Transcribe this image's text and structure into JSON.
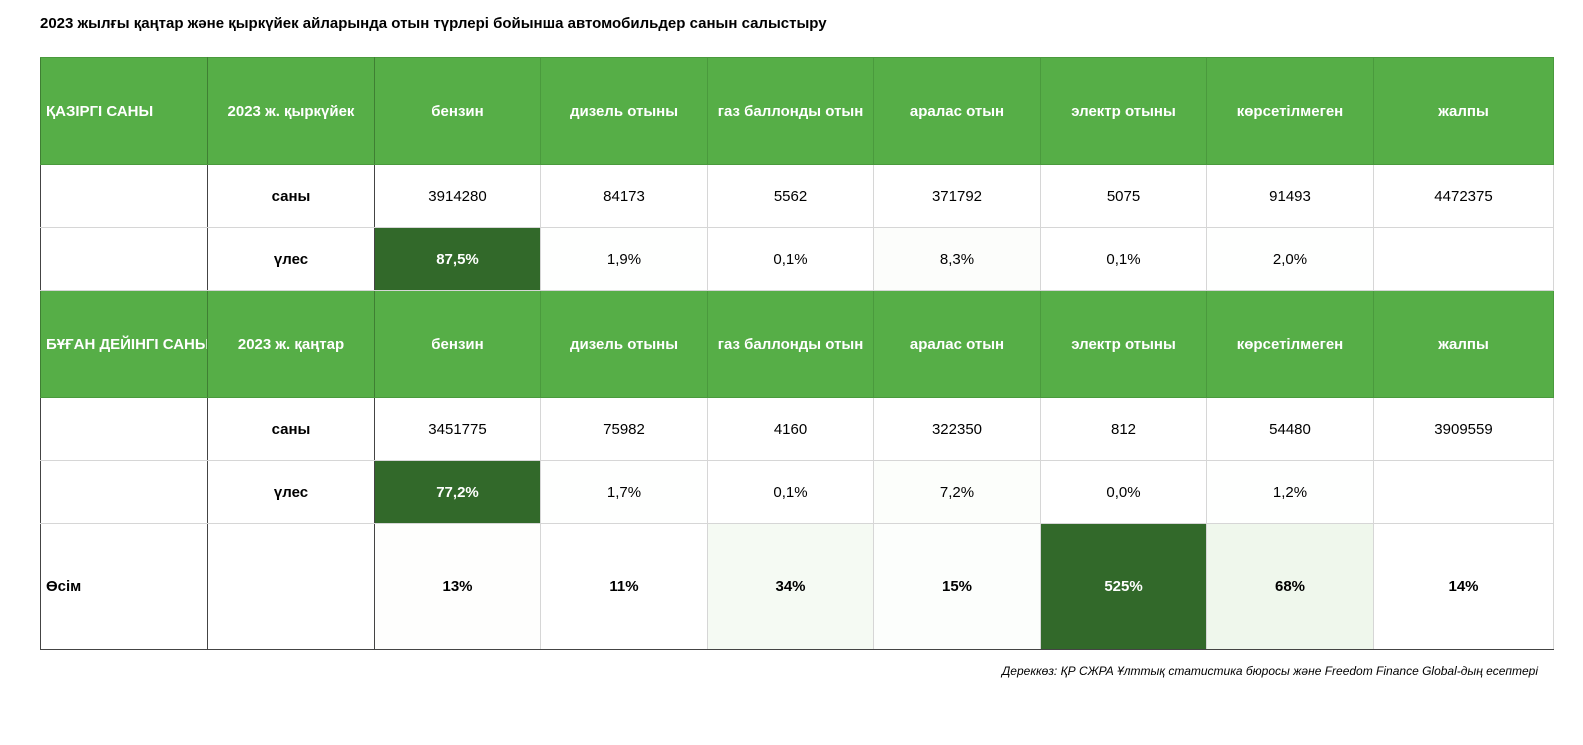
{
  "title": "2023 жылғы қаңтар және қыркүйек айларында отын түрлері бойынша автомобильдер санын салыстыру",
  "source": "Дереккөз: ҚР СЖРА Ұлттық статистика бюросы және Freedom Finance Global-дың есептері",
  "colors": {
    "header_green": "#56ae47",
    "max_green": "#32692a",
    "light_green": "#eaf5e6"
  },
  "chart_data": {
    "type": "table",
    "columns": [
      "бензин",
      "дизель отыны",
      "газ баллонды отын",
      "аралас отын",
      "электр отыны",
      "көрсетілмеген",
      "жалпы"
    ],
    "current": {
      "label": "ҚАЗІРГІ САНЫ",
      "period": "2023 ж. қыркүйек",
      "count_label": "саны",
      "share_label": "үлес",
      "counts": [
        "3914280",
        "84173",
        "5562",
        "371792",
        "5075",
        "91493",
        "4472375"
      ],
      "shares": [
        "87,5%",
        "1,9%",
        "0,1%",
        "8,3%",
        "0,1%",
        "2,0%",
        ""
      ]
    },
    "previous": {
      "label": "БҰҒАН ДЕЙІНГІ САНЫ",
      "period": "2023 ж. қаңтар",
      "count_label": "саны",
      "share_label": "үлес",
      "counts": [
        "3451775",
        "75982",
        "4160",
        "322350",
        "812",
        "54480",
        "3909559"
      ],
      "shares": [
        "77,2%",
        "1,7%",
        "0,1%",
        "7,2%",
        "0,0%",
        "1,2%",
        ""
      ]
    },
    "growth": {
      "label": "Өсім",
      "values": [
        "13%",
        "11%",
        "34%",
        "15%",
        "525%",
        "68%",
        "14%"
      ]
    }
  }
}
